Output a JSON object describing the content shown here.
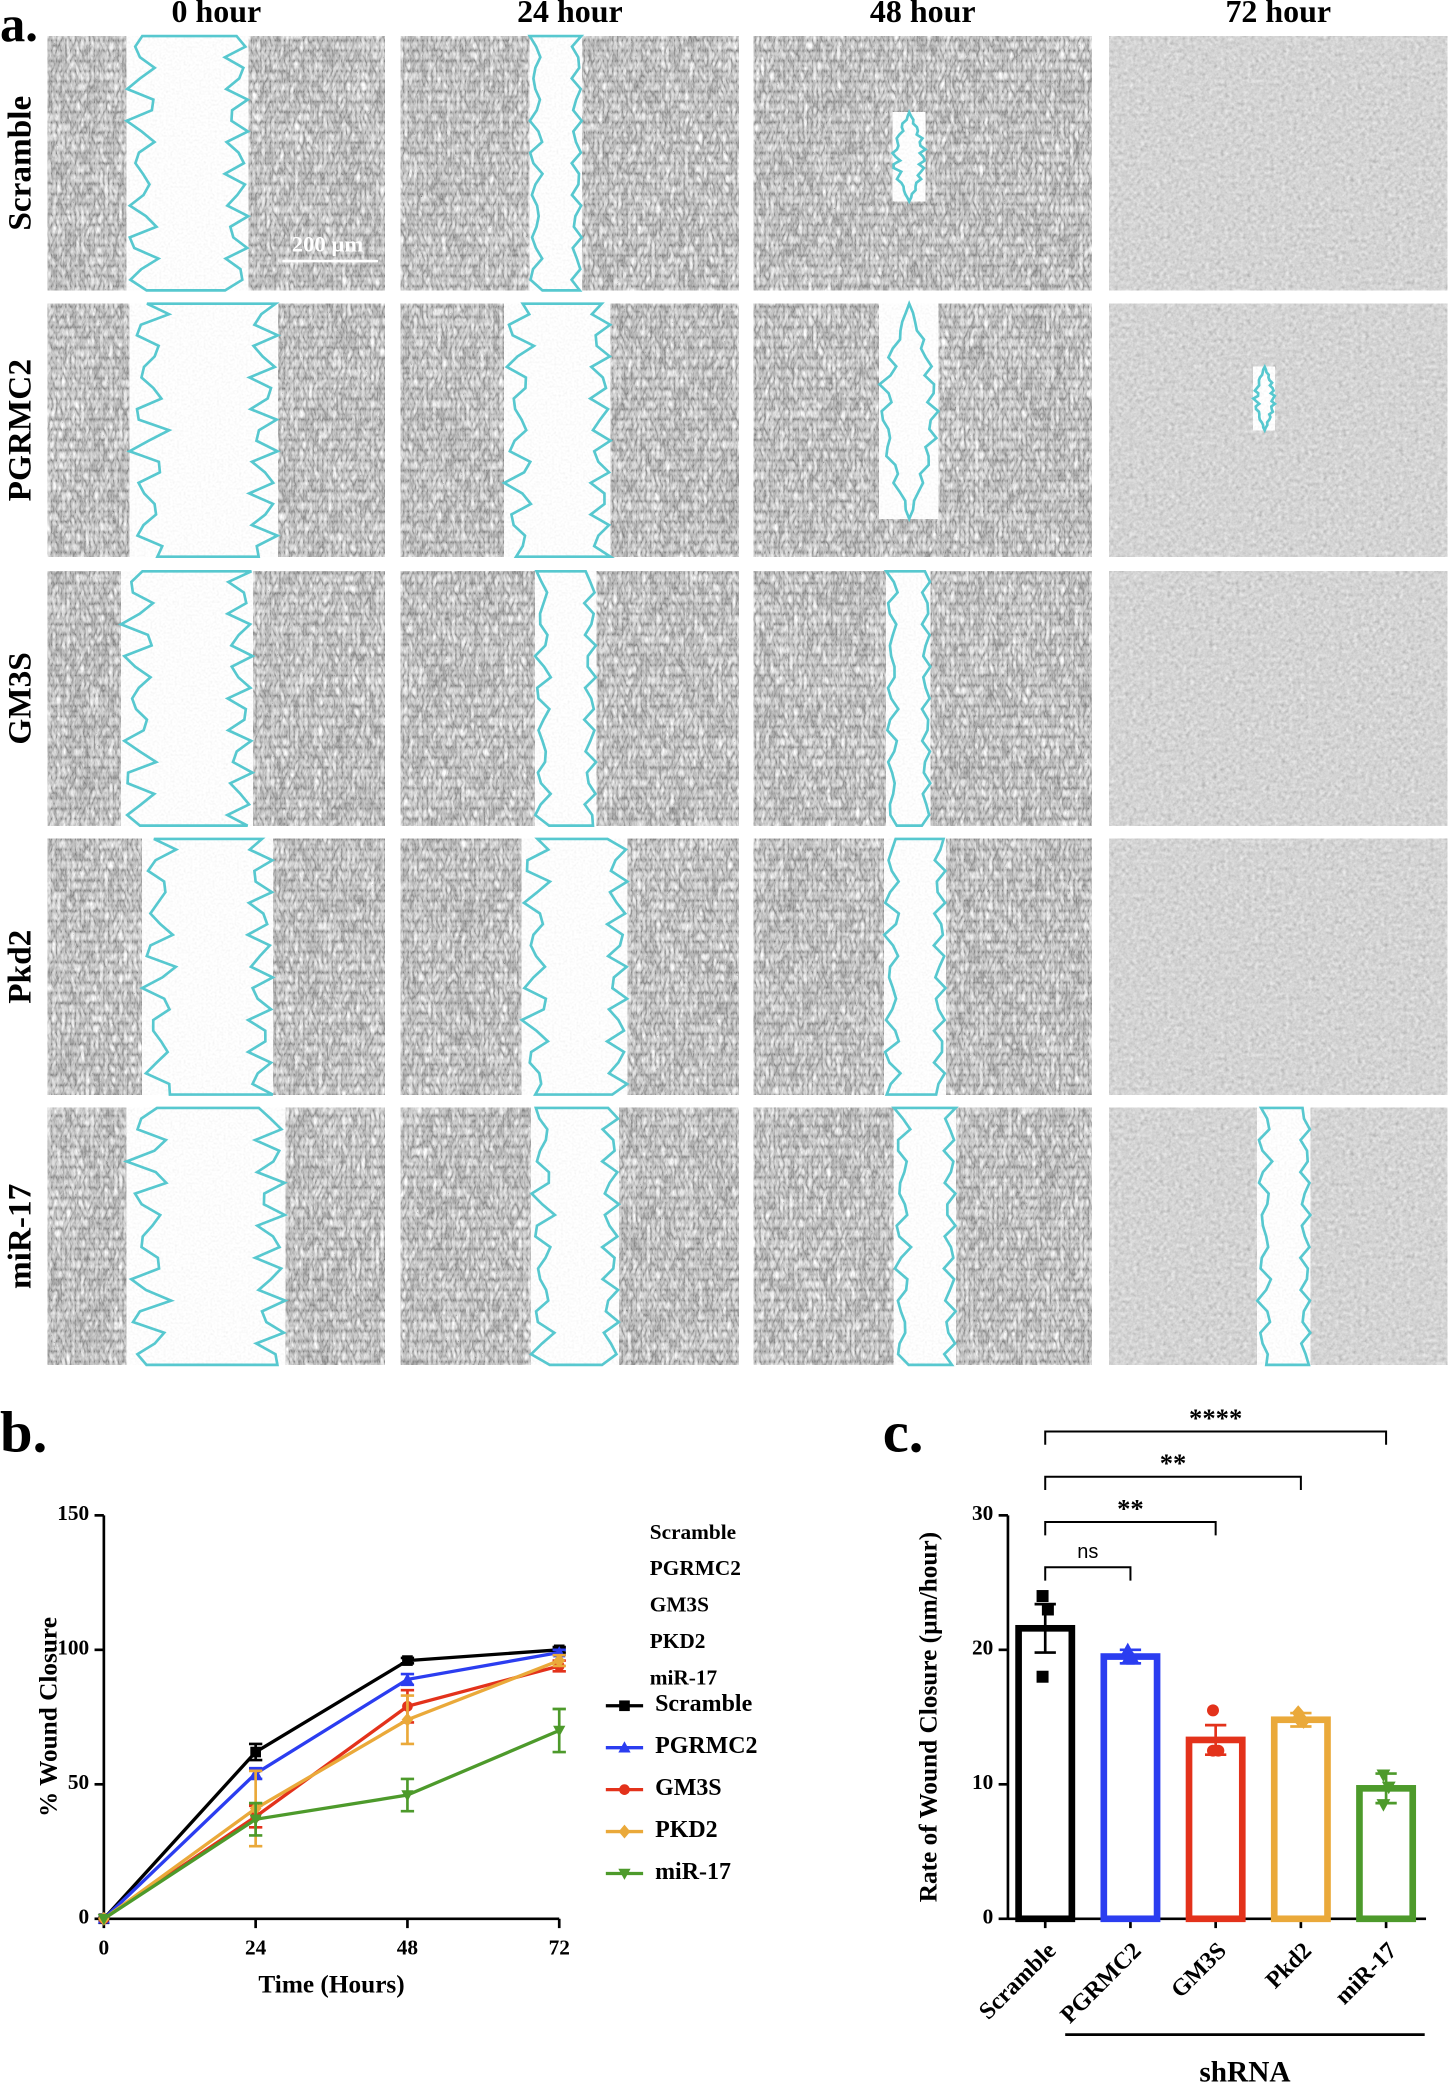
{
  "panel_a": {
    "label": "a.",
    "columns": [
      "0 hour",
      "24 hour",
      "48 hour",
      "72 hour"
    ],
    "rows": [
      "Scramble",
      "PGRMC2",
      "GM3S",
      "Pkd2",
      "miR-17"
    ],
    "scale_bar": "200 µm"
  },
  "chart_data": [
    {
      "type": "line",
      "panel_label": "b.",
      "x_label": "Time (Hours)",
      "y_label": "% Wound Closure",
      "x": [
        0,
        24,
        48,
        72
      ],
      "xlim": [
        0,
        72
      ],
      "xticks": [
        0,
        24,
        48,
        72
      ],
      "ylim": [
        0,
        150
      ],
      "yticks": [
        0,
        50,
        100,
        150
      ],
      "legend_titles": [
        "Scramble",
        "PGRMC2",
        "GM3S",
        "PKD2",
        "miR-17"
      ],
      "series": [
        {
          "name": "Scramble",
          "color": "#000000",
          "marker": "square",
          "values": [
            0,
            62,
            96,
            100
          ],
          "errors": [
            null,
            3,
            1,
            1
          ]
        },
        {
          "name": "PGRMC2",
          "color": "#2b3df0",
          "marker": "triangle",
          "values": [
            0,
            54,
            89,
            99
          ],
          "errors": [
            null,
            2,
            2,
            1
          ]
        },
        {
          "name": "GM3S",
          "color": "#e3321b",
          "marker": "circle",
          "values": [
            0,
            38,
            79,
            94
          ],
          "errors": [
            null,
            4,
            6,
            2
          ]
        },
        {
          "name": "PKD2",
          "color": "#eaa93a",
          "marker": "diamond",
          "values": [
            0,
            41,
            74,
            96
          ],
          "errors": [
            null,
            14,
            9,
            2
          ]
        },
        {
          "name": "miR-17",
          "color": "#4d9a2b",
          "marker": "triangle-down",
          "values": [
            0,
            37,
            46,
            70
          ],
          "errors": [
            null,
            6,
            6,
            8
          ]
        }
      ]
    },
    {
      "type": "bar",
      "panel_label": "c.",
      "y_label": "Rate of Wound Closure (µm/hour)",
      "group_label": "shRNA",
      "categories": [
        "Scramble",
        "PGRMC2",
        "GM3S",
        "Pkd2",
        "miR-17"
      ],
      "values": [
        21.6,
        19.5,
        13.3,
        14.8,
        9.7
      ],
      "errors": [
        1.8,
        0.5,
        1.1,
        0.5,
        1.1
      ],
      "points": [
        [
          24,
          23,
          18
        ],
        [
          20,
          19.3,
          19.3
        ],
        [
          15.5,
          12.5,
          12.5
        ],
        [
          15.3,
          14.7,
          14.9
        ],
        [
          10.7,
          9.8,
          8.5
        ]
      ],
      "colors": [
        "#000000",
        "#2b3df0",
        "#e3321b",
        "#eaa93a",
        "#4d9a2b"
      ],
      "markers": [
        "square",
        "triangle",
        "circle",
        "diamond",
        "triangle-down"
      ],
      "ylim": [
        0,
        30
      ],
      "yticks": [
        0,
        10,
        20,
        30
      ],
      "comparisons": [
        {
          "pair": [
            "Scramble",
            "PGRMC2"
          ],
          "label": "ns"
        },
        {
          "pair": [
            "Scramble",
            "GM3S"
          ],
          "label": "**"
        },
        {
          "pair": [
            "Scramble",
            "Pkd2"
          ],
          "label": "**"
        },
        {
          "pair": [
            "Scramble",
            "miR-17"
          ],
          "label": "****"
        }
      ]
    }
  ]
}
